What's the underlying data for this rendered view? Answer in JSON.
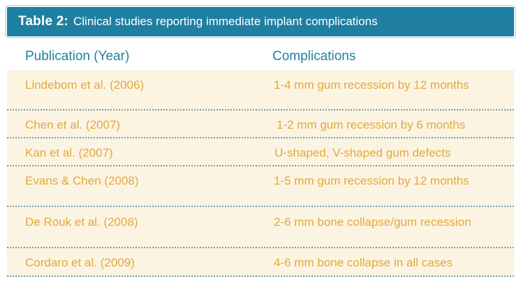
{
  "title": {
    "label": "Table 2:",
    "text": "Clinical studies reporting immediate implant complications"
  },
  "table": {
    "headers": [
      "Publication (Year)",
      "Complications"
    ],
    "rows": [
      {
        "publication": "Lindebom et al. (2006)",
        "complications": "1-4 mm gum recession by 12 months"
      },
      {
        "publication": "Chen et al. (2007)",
        "complications": "1-2 mm gum recession by 6 months"
      },
      {
        "publication": "Kan et al. (2007)",
        "complications": "U-shaped, V-shaped gum defects"
      },
      {
        "publication": "Evans & Chen (2008)",
        "complications": "1-5 mm gum recession by 12 months"
      },
      {
        "publication": "De Rouk et al. (2008)",
        "complications": "2-6 mm bone collapse/gum recession"
      },
      {
        "publication": "Cordaro et al. (2009)",
        "complications": "4-6 mm bone collapse in all cases"
      }
    ]
  },
  "colors": {
    "title_bar": "#1f7fa1",
    "header_text": "#1f7fa1",
    "row_text": "#e1a93c",
    "row_background": "#fcf4e2",
    "divider": "#6f9fb6"
  }
}
